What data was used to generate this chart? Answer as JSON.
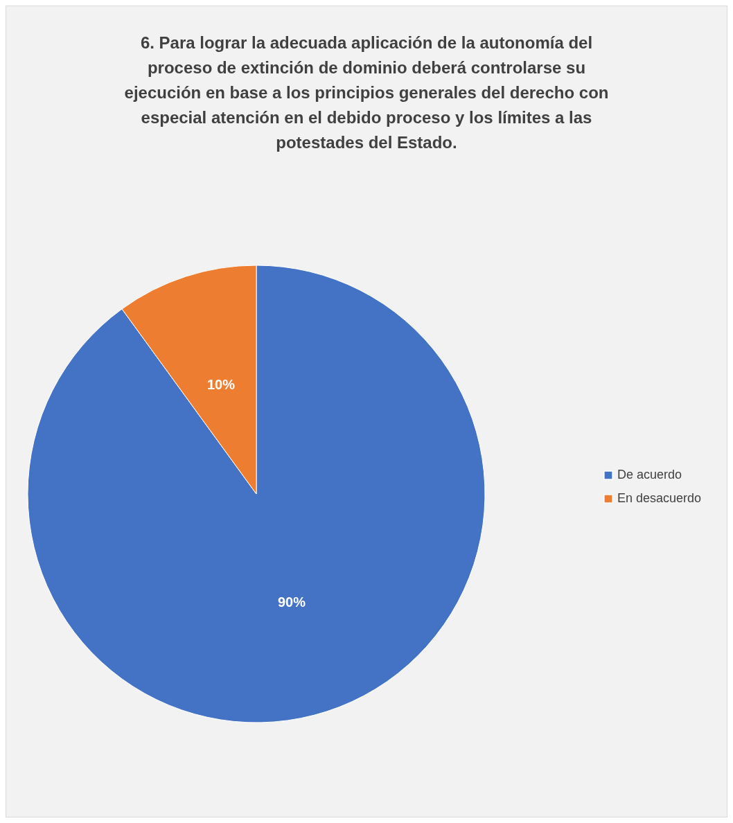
{
  "chart_data": {
    "type": "pie",
    "title": "6. Para lograr la adecuada aplicación de la autonomía del proceso de extinción de dominio deberá controlarse su ejecución en base a los principios generales del derecho con especial atención en el debido proceso y los límites a las potestades del Estado.",
    "categories": [
      "De acuerdo",
      "En desacuerdo"
    ],
    "values": [
      90,
      10
    ],
    "colors": [
      "#4472c4",
      "#ed7d31"
    ],
    "value_labels": [
      "90%",
      "10%"
    ],
    "legend": "right"
  }
}
